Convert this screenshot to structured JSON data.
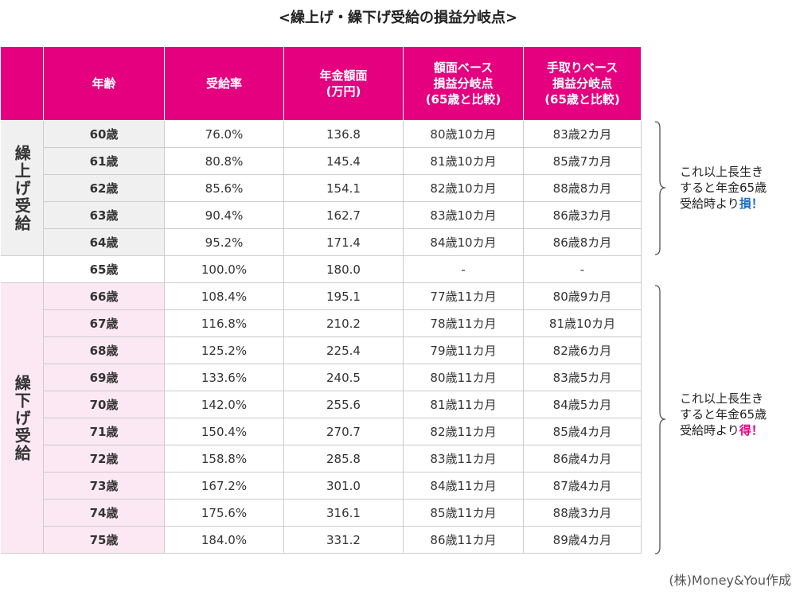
{
  "title": "<繰上げ・繰下げ受給の損益分岐点>",
  "colors": {
    "header": "#e4007f",
    "loss": "#1e6ec8",
    "gain": "#e4007f",
    "early_bg": "#f0f0f0",
    "late_bg": "#fce8f3"
  },
  "chart_data": {
    "type": "table",
    "columns": [
      "",
      "年齢",
      "受給率",
      "年金額面\n(万円)",
      "額面ベース\n損益分岐点\n(65歳と比較)",
      "手取りベース\n損益分岐点\n(65歳と比較)"
    ],
    "groups": [
      {
        "label": "繰上げ受給",
        "kind": "early",
        "rows": [
          [
            "60歳",
            "76.0%",
            "136.8",
            "80歳10カ月",
            "83歳2カ月"
          ],
          [
            "61歳",
            "80.8%",
            "145.4",
            "81歳10カ月",
            "85歳7カ月"
          ],
          [
            "62歳",
            "85.6%",
            "154.1",
            "82歳10カ月",
            "88歳8カ月"
          ],
          [
            "63歳",
            "90.4%",
            "162.7",
            "83歳10カ月",
            "86歳3カ月"
          ],
          [
            "64歳",
            "95.2%",
            "171.4",
            "84歳10カ月",
            "86歳8カ月"
          ]
        ]
      },
      {
        "label": "",
        "kind": "base",
        "rows": [
          [
            "65歳",
            "100.0%",
            "180.0",
            "-",
            "-"
          ]
        ]
      },
      {
        "label": "繰下げ受給",
        "kind": "late",
        "rows": [
          [
            "66歳",
            "108.4%",
            "195.1",
            "77歳11カ月",
            "80歳9カ月"
          ],
          [
            "67歳",
            "116.8%",
            "210.2",
            "78歳11カ月",
            "81歳10カ月"
          ],
          [
            "68歳",
            "125.2%",
            "225.4",
            "79歳11カ月",
            "82歳6カ月"
          ],
          [
            "69歳",
            "133.6%",
            "240.5",
            "80歳11カ月",
            "83歳5カ月"
          ],
          [
            "70歳",
            "142.0%",
            "255.6",
            "81歳11カ月",
            "84歳5カ月"
          ],
          [
            "71歳",
            "150.4%",
            "270.7",
            "82歳11カ月",
            "85歳4カ月"
          ],
          [
            "72歳",
            "158.8%",
            "285.8",
            "83歳11カ月",
            "86歳4カ月"
          ],
          [
            "73歳",
            "167.2%",
            "301.0",
            "84歳11カ月",
            "87歳4カ月"
          ],
          [
            "74歳",
            "175.6%",
            "316.1",
            "85歳11カ月",
            "88歳3カ月"
          ],
          [
            "75歳",
            "184.0%",
            "331.2",
            "86歳11カ月",
            "89歳4カ月"
          ]
        ]
      }
    ]
  },
  "notes": {
    "early": {
      "line1": "これ以上長生き",
      "line2": "すると年金65歳",
      "line3": "受給時より",
      "mark": "損！"
    },
    "late": {
      "line1": "これ以上長生き",
      "line2": "すると年金65歳",
      "line3": "受給時より",
      "mark": "得！"
    }
  },
  "credit": "(株)Money&You作成"
}
